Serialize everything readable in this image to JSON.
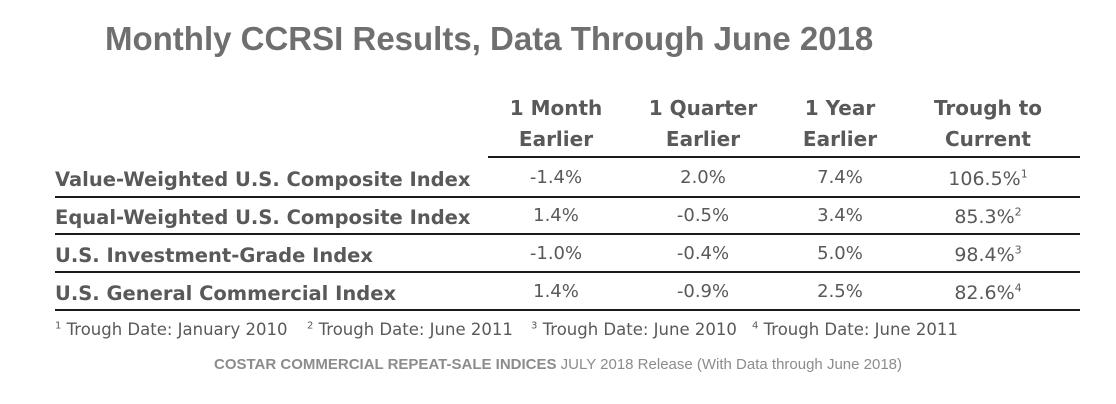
{
  "title": "Monthly CCRSI Results, Data Through June 2018",
  "columns": [
    {
      "line1": "1 Month",
      "line2": "Earlier"
    },
    {
      "line1": "1 Quarter",
      "line2": "Earlier"
    },
    {
      "line1": "1 Year",
      "line2": "Earlier"
    },
    {
      "line1": "Trough to",
      "line2": "Current"
    }
  ],
  "rows": [
    {
      "label": "Value-Weighted U.S. Composite Index",
      "month": "-1.4%",
      "quarter": "2.0%",
      "year": "7.4%",
      "trough": "106.5%",
      "note": "1"
    },
    {
      "label": "Equal-Weighted U.S. Composite Index",
      "month": "1.4%",
      "quarter": "-0.5%",
      "year": "3.4%",
      "trough": "85.3%",
      "note": "2"
    },
    {
      "label": "U.S. Investment-Grade Index",
      "month": "-1.0%",
      "quarter": "-0.4%",
      "year": "5.0%",
      "trough": "98.4%",
      "note": "3"
    },
    {
      "label": "U.S. General Commercial Index",
      "month": "1.4%",
      "quarter": "-0.9%",
      "year": "2.5%",
      "trough": "82.6%",
      "note": "4"
    }
  ],
  "footnotes": [
    {
      "num": "1",
      "text": "Trough Date: January 2010"
    },
    {
      "num": "2",
      "text": "Trough Date: June 2011"
    },
    {
      "num": "3",
      "text": "Trough Date: June 2010"
    },
    {
      "num": "4",
      "text": "Trough Date: June 2011"
    }
  ],
  "source": {
    "bold": "COSTAR COMMERCIAL REPEAT-SALE INDICES",
    "rest": " JULY 2018 Release (With Data through June 2018)"
  }
}
